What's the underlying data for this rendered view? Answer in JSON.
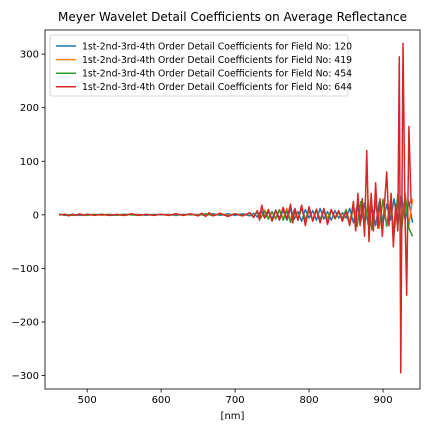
{
  "chart_data": {
    "type": "line",
    "title": "Meyer Wavelet Detail Coefficients on Average Reflectance",
    "xlabel": "[nm]",
    "ylabel": "",
    "xlim": [
      443,
      950
    ],
    "ylim": [
      -325,
      345
    ],
    "xticks": [
      500,
      600,
      700,
      800,
      900
    ],
    "yticks": [
      -300,
      -200,
      -100,
      0,
      100,
      200,
      300
    ],
    "grid": false,
    "legend_position": "top-left",
    "series": [
      {
        "name": "1st-2nd-3rd-4th Order Detail Coefficients for Field No: 120",
        "color": "#1f77b4",
        "points": [
          [
            462,
            1
          ],
          [
            470,
            -1
          ],
          [
            480,
            1
          ],
          [
            490,
            -1
          ],
          [
            500,
            1
          ],
          [
            510,
            0
          ],
          [
            520,
            1
          ],
          [
            530,
            -1
          ],
          [
            540,
            0
          ],
          [
            550,
            1
          ],
          [
            560,
            0
          ],
          [
            570,
            1
          ],
          [
            580,
            -1
          ],
          [
            590,
            1
          ],
          [
            600,
            0
          ],
          [
            610,
            1
          ],
          [
            620,
            -1
          ],
          [
            630,
            1
          ],
          [
            640,
            0
          ],
          [
            650,
            1
          ],
          [
            660,
            -1
          ],
          [
            670,
            2
          ],
          [
            680,
            -1
          ],
          [
            690,
            2
          ],
          [
            700,
            -1
          ],
          [
            710,
            2
          ],
          [
            720,
            -2
          ],
          [
            725,
            3
          ],
          [
            730,
            -4
          ],
          [
            735,
            8
          ],
          [
            740,
            -6
          ],
          [
            745,
            5
          ],
          [
            750,
            -7
          ],
          [
            755,
            9
          ],
          [
            760,
            -6
          ],
          [
            765,
            8
          ],
          [
            770,
            -10
          ],
          [
            775,
            12
          ],
          [
            780,
            -8
          ],
          [
            785,
            6
          ],
          [
            790,
            -12
          ],
          [
            795,
            10
          ],
          [
            800,
            -6
          ],
          [
            805,
            8
          ],
          [
            810,
            -10
          ],
          [
            815,
            12
          ],
          [
            820,
            -8
          ],
          [
            825,
            6
          ],
          [
            830,
            -10
          ],
          [
            835,
            8
          ],
          [
            840,
            -6
          ],
          [
            845,
            4
          ],
          [
            850,
            -6
          ],
          [
            855,
            12
          ],
          [
            860,
            -15
          ],
          [
            865,
            18
          ],
          [
            870,
            -12
          ],
          [
            875,
            22
          ],
          [
            880,
            -18
          ],
          [
            885,
            15
          ],
          [
            890,
            -20
          ],
          [
            895,
            25
          ],
          [
            900,
            -15
          ],
          [
            905,
            20
          ],
          [
            910,
            -10
          ],
          [
            915,
            30
          ],
          [
            920,
            -20
          ],
          [
            925,
            35
          ],
          [
            930,
            -10
          ],
          [
            935,
            25
          ],
          [
            940,
            -15
          ]
        ]
      },
      {
        "name": "1st-2nd-3rd-4th Order Detail Coefficients for Field No: 419",
        "color": "#ff7f0e",
        "points": [
          [
            462,
            0
          ],
          [
            470,
            1
          ],
          [
            480,
            -1
          ],
          [
            490,
            1
          ],
          [
            500,
            0
          ],
          [
            510,
            1
          ],
          [
            520,
            -1
          ],
          [
            530,
            1
          ],
          [
            540,
            0
          ],
          [
            550,
            -1
          ],
          [
            560,
            1
          ],
          [
            570,
            0
          ],
          [
            580,
            1
          ],
          [
            590,
            -1
          ],
          [
            600,
            1
          ],
          [
            610,
            0
          ],
          [
            620,
            1
          ],
          [
            630,
            -1
          ],
          [
            640,
            1
          ],
          [
            650,
            0
          ],
          [
            660,
            1
          ],
          [
            670,
            -1
          ],
          [
            680,
            2
          ],
          [
            690,
            -1
          ],
          [
            700,
            2
          ],
          [
            710,
            -2
          ],
          [
            720,
            3
          ],
          [
            725,
            -3
          ],
          [
            730,
            5
          ],
          [
            735,
            -6
          ],
          [
            740,
            9
          ],
          [
            745,
            -5
          ],
          [
            750,
            6
          ],
          [
            755,
            -8
          ],
          [
            760,
            10
          ],
          [
            765,
            -7
          ],
          [
            770,
            12
          ],
          [
            775,
            -9
          ],
          [
            780,
            8
          ],
          [
            785,
            -10
          ],
          [
            790,
            14
          ],
          [
            795,
            -8
          ],
          [
            800,
            7
          ],
          [
            805,
            -9
          ],
          [
            810,
            11
          ],
          [
            815,
            -12
          ],
          [
            820,
            9
          ],
          [
            825,
            -7
          ],
          [
            830,
            10
          ],
          [
            835,
            -8
          ],
          [
            840,
            6
          ],
          [
            845,
            -5
          ],
          [
            850,
            8
          ],
          [
            855,
            -12
          ],
          [
            860,
            16
          ],
          [
            865,
            -14
          ],
          [
            870,
            20
          ],
          [
            875,
            -16
          ],
          [
            880,
            28
          ],
          [
            885,
            -20
          ],
          [
            890,
            22
          ],
          [
            895,
            -25
          ],
          [
            900,
            30
          ],
          [
            905,
            -18
          ],
          [
            910,
            25
          ],
          [
            915,
            -30
          ],
          [
            920,
            35
          ],
          [
            925,
            -25
          ],
          [
            930,
            40
          ],
          [
            935,
            -20
          ],
          [
            940,
            30
          ]
        ]
      },
      {
        "name": "1st-2nd-3rd-4th Order Detail Coefficients for Field No: 454",
        "color": "#2ca02c",
        "points": [
          [
            462,
            1
          ],
          [
            470,
            0
          ],
          [
            480,
            -1
          ],
          [
            490,
            1
          ],
          [
            500,
            -1
          ],
          [
            510,
            1
          ],
          [
            520,
            0
          ],
          [
            530,
            1
          ],
          [
            540,
            -1
          ],
          [
            550,
            1
          ],
          [
            560,
            0
          ],
          [
            570,
            -1
          ],
          [
            580,
            1
          ],
          [
            590,
            0
          ],
          [
            600,
            1
          ],
          [
            610,
            -1
          ],
          [
            620,
            1
          ],
          [
            630,
            0
          ],
          [
            640,
            1
          ],
          [
            650,
            -1
          ],
          [
            660,
            2
          ],
          [
            670,
            -1
          ],
          [
            680,
            1
          ],
          [
            690,
            -2
          ],
          [
            700,
            2
          ],
          [
            710,
            -1
          ],
          [
            720,
            3
          ],
          [
            725,
            -4
          ],
          [
            730,
            6
          ],
          [
            735,
            -5
          ],
          [
            740,
            7
          ],
          [
            745,
            -8
          ],
          [
            750,
            6
          ],
          [
            755,
            -7
          ],
          [
            760,
            9
          ],
          [
            765,
            -10
          ],
          [
            770,
            8
          ],
          [
            775,
            -14
          ],
          [
            780,
            10
          ],
          [
            785,
            -8
          ],
          [
            790,
            12
          ],
          [
            795,
            -10
          ],
          [
            800,
            9
          ],
          [
            805,
            -11
          ],
          [
            810,
            10
          ],
          [
            815,
            -9
          ],
          [
            820,
            8
          ],
          [
            825,
            -12
          ],
          [
            830,
            9
          ],
          [
            835,
            -7
          ],
          [
            840,
            5
          ],
          [
            845,
            -8
          ],
          [
            850,
            10
          ],
          [
            855,
            -18
          ],
          [
            860,
            14
          ],
          [
            865,
            -22
          ],
          [
            870,
            25
          ],
          [
            875,
            -18
          ],
          [
            880,
            20
          ],
          [
            885,
            -28
          ],
          [
            890,
            24
          ],
          [
            895,
            -20
          ],
          [
            900,
            28
          ],
          [
            905,
            -22
          ],
          [
            910,
            20
          ],
          [
            915,
            -35
          ],
          [
            920,
            38
          ],
          [
            925,
            -30
          ],
          [
            930,
            35
          ],
          [
            935,
            -25
          ],
          [
            940,
            -40
          ]
        ]
      },
      {
        "name": "1st-2nd-3rd-4th Order Detail Coefficients for Field No: 644",
        "color": "#d62728",
        "points": [
          [
            462,
            0
          ],
          [
            470,
            1
          ],
          [
            475,
            -2
          ],
          [
            480,
            1
          ],
          [
            485,
            -1
          ],
          [
            490,
            2
          ],
          [
            495,
            -1
          ],
          [
            500,
            1
          ],
          [
            510,
            -1
          ],
          [
            520,
            1
          ],
          [
            530,
            -1
          ],
          [
            540,
            1
          ],
          [
            550,
            -1
          ],
          [
            560,
            2
          ],
          [
            570,
            -1
          ],
          [
            580,
            1
          ],
          [
            590,
            -1
          ],
          [
            600,
            1
          ],
          [
            610,
            -1
          ],
          [
            620,
            2
          ],
          [
            630,
            -1
          ],
          [
            640,
            2
          ],
          [
            650,
            -2
          ],
          [
            655,
            3
          ],
          [
            660,
            -3
          ],
          [
            665,
            4
          ],
          [
            670,
            -2
          ],
          [
            680,
            3
          ],
          [
            690,
            -3
          ],
          [
            700,
            2
          ],
          [
            710,
            -2
          ],
          [
            720,
            4
          ],
          [
            725,
            -5
          ],
          [
            730,
            8
          ],
          [
            733,
            -10
          ],
          [
            736,
            18
          ],
          [
            740,
            -6
          ],
          [
            745,
            10
          ],
          [
            750,
            -12
          ],
          [
            755,
            8
          ],
          [
            760,
            -10
          ],
          [
            765,
            14
          ],
          [
            770,
            -8
          ],
          [
            775,
            20
          ],
          [
            778,
            -15
          ],
          [
            781,
            12
          ],
          [
            785,
            -10
          ],
          [
            790,
            18
          ],
          [
            795,
            -20
          ],
          [
            800,
            15
          ],
          [
            805,
            -12
          ],
          [
            810,
            10
          ],
          [
            815,
            -15
          ],
          [
            820,
            12
          ],
          [
            825,
            -18
          ],
          [
            830,
            10
          ],
          [
            835,
            -6
          ],
          [
            840,
            8
          ],
          [
            845,
            -12
          ],
          [
            850,
            6
          ],
          [
            855,
            -20
          ],
          [
            860,
            25
          ],
          [
            863,
            -30
          ],
          [
            866,
            40
          ],
          [
            869,
            -20
          ],
          [
            872,
            30
          ],
          [
            875,
            -40
          ],
          [
            878,
            120
          ],
          [
            881,
            -50
          ],
          [
            884,
            40
          ],
          [
            887,
            -30
          ],
          [
            890,
            60
          ],
          [
            893,
            -25
          ],
          [
            896,
            30
          ],
          [
            899,
            -40
          ],
          [
            902,
            20
          ],
          [
            905,
            80
          ],
          [
            908,
            -20
          ],
          [
            911,
            40
          ],
          [
            914,
            -60
          ],
          [
            917,
            20
          ],
          [
            920,
            -30
          ],
          [
            922,
            295
          ],
          [
            924,
            -295
          ],
          [
            927,
            320
          ],
          [
            930,
            -20
          ],
          [
            932,
            -150
          ],
          [
            935,
            165
          ],
          [
            938,
            20
          ]
        ]
      }
    ]
  }
}
